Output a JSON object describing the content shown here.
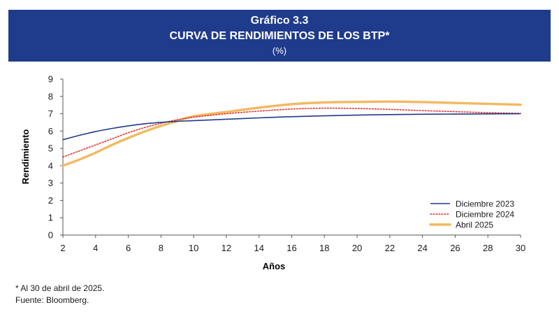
{
  "header": {
    "line1": "Gráfico 3.3",
    "line2": "CURVA DE RENDIMIENTOS DE LOS BTP*",
    "line3": "(%)"
  },
  "chart_data": {
    "type": "line",
    "title": "CURVA DE RENDIMIENTOS DE LOS BTP*",
    "subtitle": "(%)",
    "xlabel": "Años",
    "ylabel": "Rendimiento",
    "xlim": [
      2,
      30
    ],
    "ylim": [
      0,
      9
    ],
    "xticks": [
      "2",
      "4",
      "6",
      "8",
      "10",
      "12",
      "14",
      "16",
      "18",
      "20",
      "22",
      "24",
      "26",
      "28",
      "30"
    ],
    "yticks": [
      "0",
      "1",
      "2",
      "3",
      "4",
      "5",
      "6",
      "7",
      "8",
      "9"
    ],
    "grid": false,
    "legend_position": "bottom-right",
    "x": [
      2,
      3,
      4,
      5,
      6,
      7,
      8,
      9,
      10,
      12,
      14,
      16,
      18,
      20,
      22,
      24,
      26,
      28,
      30
    ],
    "series": [
      {
        "name": "Diciembre 2023",
        "color": "#1f3b8c",
        "style": "solid",
        "values": [
          5.5,
          5.75,
          5.97,
          6.15,
          6.3,
          6.42,
          6.5,
          6.56,
          6.6,
          6.68,
          6.76,
          6.83,
          6.88,
          6.92,
          6.95,
          6.97,
          6.98,
          6.99,
          7.0
        ]
      },
      {
        "name": "Diciembre 2024",
        "color": "#e0302a",
        "style": "dotted",
        "values": [
          4.5,
          4.85,
          5.2,
          5.55,
          5.9,
          6.2,
          6.45,
          6.65,
          6.8,
          7.0,
          7.15,
          7.27,
          7.32,
          7.3,
          7.25,
          7.18,
          7.12,
          7.06,
          7.02
        ]
      },
      {
        "name": "Abril 2025",
        "color": "#f4b860",
        "style": "solid-thick",
        "values": [
          4.0,
          4.35,
          4.75,
          5.2,
          5.6,
          5.97,
          6.3,
          6.58,
          6.85,
          7.1,
          7.35,
          7.55,
          7.65,
          7.68,
          7.7,
          7.67,
          7.62,
          7.57,
          7.52
        ]
      }
    ]
  },
  "notes": {
    "footnote": "* Al 30 de abril de 2025.",
    "source": "Fuente: Bloomberg."
  }
}
